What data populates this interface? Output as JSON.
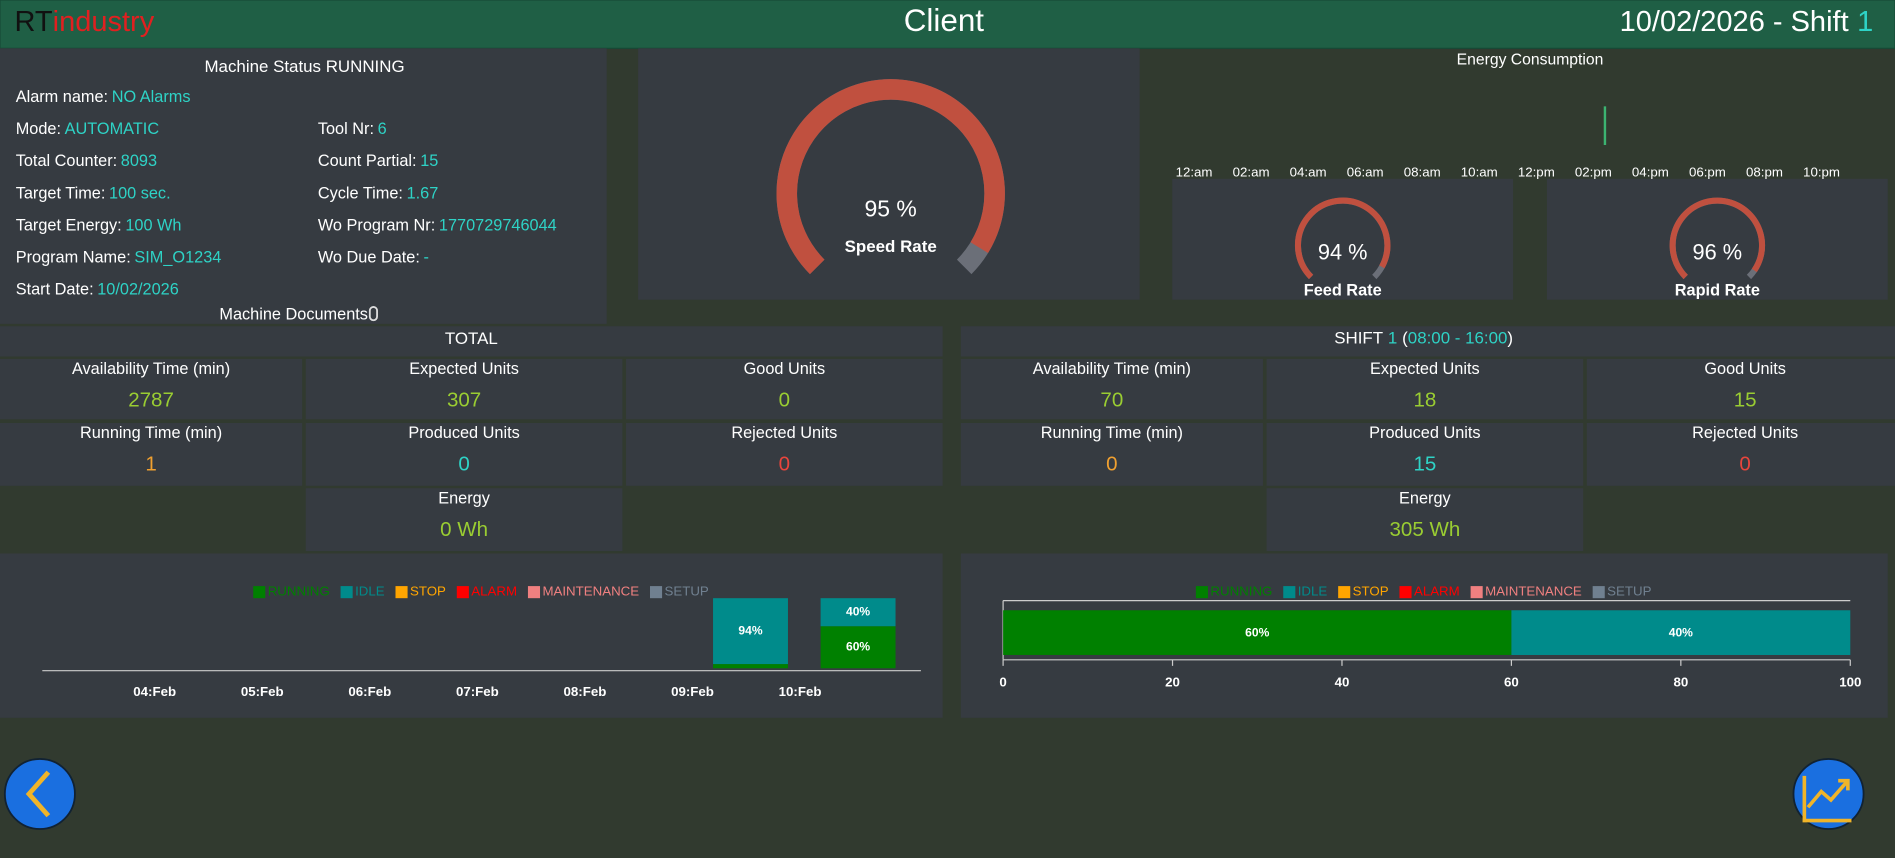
{
  "header": {
    "brand_a": "RT",
    "brand_b": "industry",
    "title": "Client",
    "date": "10/02/2026 - Shift",
    "shift": "1"
  },
  "status": {
    "title": "Machine Status RUNNING",
    "left": [
      {
        "label": "Alarm name:",
        "value": "NO Alarms"
      },
      {
        "label": "Mode:",
        "value": "AUTOMATIC"
      },
      {
        "label": "Total Counter:",
        "value": 8093
      },
      {
        "label": "Target Time:",
        "value": "100 sec."
      },
      {
        "label": "Target Energy:",
        "value": "100 Wh"
      },
      {
        "label": "Program Name:",
        "value": "SIM_O1234"
      },
      {
        "label": "Start Date:",
        "value": "10/02/2026"
      }
    ],
    "right": [
      {
        "label": "Tool Nr:",
        "value": 6
      },
      {
        "label": "Count Partial:",
        "value": 15
      },
      {
        "label": "Cycle Time:",
        "value": 1.67
      },
      {
        "label": "Wo Program Nr:",
        "value": 1770729746044
      },
      {
        "label": "Wo Due Date:",
        "value": "-"
      }
    ],
    "documents": "Machine Documents"
  },
  "gauges": [
    {
      "value": 95,
      "value_label": "95 %",
      "label": "Speed Rate",
      "range": [
        0,
        100
      ]
    },
    {
      "value": 94,
      "value_label": "94 %",
      "label": "Feed Rate",
      "range": [
        0,
        100
      ]
    },
    {
      "value": 96,
      "value_label": "96 %",
      "label": "Rapid Rate",
      "range": [
        0,
        100
      ]
    }
  ],
  "energy": {
    "title": "Energy Consumption",
    "x": [
      "12:am",
      "02:am",
      "04:am",
      "06:am",
      "08:am",
      "10:am",
      "12:pm",
      "02:pm",
      "04:pm",
      "06:pm",
      "08:pm",
      "10:pm"
    ]
  },
  "total": {
    "title": "TOTAL",
    "cells": [
      {
        "label": "Availability Time (min)",
        "value": 2787,
        "color": "#9acd32"
      },
      {
        "label": "Expected Units",
        "value": 307,
        "color": "#9acd32"
      },
      {
        "label": "Good Units",
        "value": 0,
        "color": "#9acd32"
      },
      {
        "label": "Running Time (min)",
        "value": 1,
        "color": "#f0a030"
      },
      {
        "label": "Produced Units",
        "value": 0,
        "color": "#2ed3c6"
      },
      {
        "label": "Rejected Units",
        "value": 0,
        "color": "#e8453c"
      },
      {
        "label": "Energy",
        "value": "0 Wh",
        "color": "#9acd32"
      }
    ]
  },
  "shift_totals": {
    "title": "SHIFT",
    "shift": "1",
    "open": "(",
    "hours": "08:00 - 16:00",
    "close": ")",
    "cells": [
      {
        "label": "Availability Time (min)",
        "value": 70,
        "color": "#9acd32"
      },
      {
        "label": "Expected Units",
        "value": 18,
        "color": "#9acd32"
      },
      {
        "label": "Good Units",
        "value": 15,
        "color": "#9acd32"
      },
      {
        "label": "Running Time (min)",
        "value": 0,
        "color": "#f0a030"
      },
      {
        "label": "Produced Units",
        "value": 15,
        "color": "#2ed3c6"
      },
      {
        "label": "Rejected Units",
        "value": 0,
        "color": "#e8453c"
      },
      {
        "label": "Energy",
        "value": "305 Wh",
        "color": "#9acd32"
      }
    ]
  },
  "charts": [
    {
      "type": "bar",
      "orientation": "vertical",
      "stacked": true,
      "ylim": [
        0,
        100
      ],
      "categories": [
        "04:Feb",
        "05:Feb",
        "06:Feb",
        "07:Feb",
        "08:Feb",
        "09:Feb",
        "10:Feb"
      ],
      "series": [
        {
          "name": "RUNNING",
          "color": "#008000",
          "values": [
            null,
            null,
            null,
            null,
            null,
            6,
            60
          ],
          "value_labels": [
            null,
            null,
            null,
            null,
            null,
            null,
            "60%"
          ]
        },
        {
          "name": "IDLE",
          "color": "#008b8b",
          "values": [
            null,
            null,
            null,
            null,
            null,
            94,
            40
          ],
          "value_labels": [
            null,
            null,
            null,
            null,
            null,
            "94%",
            "40%"
          ]
        },
        {
          "name": "STOP",
          "color": "#ffa500",
          "values": [
            null,
            null,
            null,
            null,
            null,
            null,
            null
          ]
        },
        {
          "name": "ALARM",
          "color": "#ff0000",
          "values": [
            null,
            null,
            null,
            null,
            null,
            null,
            null
          ]
        },
        {
          "name": "MAINTENANCE",
          "color": "#f08080",
          "values": [
            null,
            null,
            null,
            null,
            null,
            null,
            null
          ]
        },
        {
          "name": "SETUP",
          "color": "#708090",
          "values": [
            null,
            null,
            null,
            null,
            null,
            null,
            null
          ]
        }
      ]
    },
    {
      "type": "bar",
      "orientation": "horizontal",
      "stacked": true,
      "xlim": [
        0,
        100
      ],
      "xticks": [
        0,
        20,
        40,
        60,
        80,
        100
      ],
      "categories": [
        null
      ],
      "series": [
        {
          "name": "RUNNING",
          "color": "#008000",
          "values": [
            60
          ],
          "value_labels": [
            "60%"
          ]
        },
        {
          "name": "IDLE",
          "color": "#008b8b",
          "values": [
            40
          ],
          "value_labels": [
            "40%"
          ]
        },
        {
          "name": "STOP",
          "color": "#ffa500",
          "values": [
            null
          ]
        },
        {
          "name": "ALARM",
          "color": "#ff0000",
          "values": [
            null
          ]
        },
        {
          "name": "MAINTENANCE",
          "color": "#f08080",
          "values": [
            null
          ]
        },
        {
          "name": "SETUP",
          "color": "#708090",
          "values": [
            null
          ]
        }
      ]
    }
  ]
}
